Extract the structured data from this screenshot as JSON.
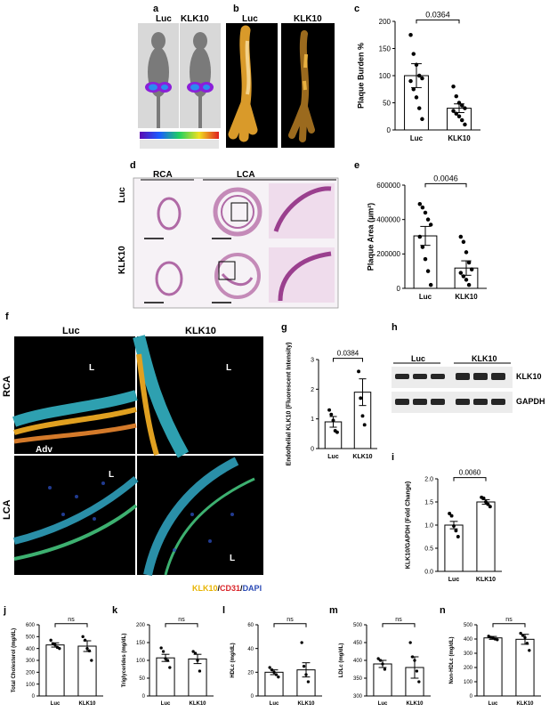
{
  "panel_labels": {
    "a": "a",
    "b": "b",
    "c": "c",
    "d": "d",
    "e": "e",
    "f": "f",
    "g": "g",
    "h": "h",
    "i": "i",
    "j": "j",
    "k": "k",
    "l": "l",
    "m": "m",
    "n": "n"
  },
  "panel_a": {
    "luc": "Luc",
    "klk10": "KLK10"
  },
  "panel_b": {
    "luc": "Luc",
    "klk10": "KLK10"
  },
  "panel_d": {
    "rca": "RCA",
    "lca": "LCA",
    "luc": "Luc",
    "klk10": "KLK10"
  },
  "panel_f": {
    "luc": "Luc",
    "klk10": "KLK10",
    "rca": "RCA",
    "lca": "LCA",
    "adv": "Adv",
    "lumen": "L",
    "stain_klk10": "KLK10",
    "stain_sep1": "/",
    "stain_cd31": "CD31",
    "stain_sep2": "/",
    "stain_dapi": "DAPI"
  },
  "panel_h": {
    "luc": "Luc",
    "klk10": "KLK10",
    "row1": "KLK10",
    "row2": "GAPDH"
  },
  "colors": {
    "bar_stroke": "#000000",
    "klk10_stain": "#e8b400",
    "cd31_stain": "#d9252a",
    "dapi_stain": "#2a4ab5"
  },
  "chart_data": [
    {
      "id": "c",
      "type": "bar",
      "categories": [
        "Luc",
        "KLK10"
      ],
      "values": [
        100,
        40
      ],
      "errors": [
        22,
        8
      ],
      "points": [
        [
          175,
          140,
          120,
          100,
          95,
          90,
          75,
          60,
          40,
          20
        ],
        [
          80,
          62,
          50,
          45,
          40,
          35,
          30,
          25,
          18,
          10
        ]
      ],
      "ylabel": "Plaque Burden %",
      "ylim": [
        0,
        200
      ],
      "yticks": [
        "0",
        "50",
        "100",
        "150",
        "200"
      ],
      "pvalue": "0.0364"
    },
    {
      "id": "e",
      "type": "bar",
      "categories": [
        "Luc",
        "KLK10"
      ],
      "values": [
        305000,
        118000
      ],
      "errors": [
        55000,
        42000
      ],
      "points": [
        [
          490000,
          470000,
          440000,
          400000,
          370000,
          300000,
          240000,
          170000,
          100000,
          20000
        ],
        [
          300000,
          270000,
          210000,
          150000,
          110000,
          90000,
          70000,
          50000,
          20000
        ]
      ],
      "ylabel": "Plaque Area (µm²)",
      "ylim": [
        0,
        600000
      ],
      "yticks": [
        "0",
        "200000",
        "400000",
        "600000"
      ],
      "pvalue": "0.0046"
    },
    {
      "id": "g",
      "type": "bar",
      "categories": [
        "Luc",
        "KLK10"
      ],
      "values": [
        0.9,
        1.9
      ],
      "errors": [
        0.18,
        0.45
      ],
      "points": [
        [
          1.3,
          1.15,
          0.95,
          0.6,
          0.55
        ],
        [
          2.6,
          1.7,
          1.1,
          0.8
        ]
      ],
      "ylabel": "Endothelial KLK10 (Fluorescent Intensity)",
      "ylim": [
        0,
        3
      ],
      "yticks": [
        "0",
        "1",
        "2",
        "3"
      ],
      "pvalue": "0.0384"
    },
    {
      "id": "i",
      "type": "bar",
      "categories": [
        "Luc",
        "KLK10"
      ],
      "values": [
        1.0,
        1.5
      ],
      "errors": [
        0.08,
        0.05
      ],
      "points": [
        [
          1.25,
          1.2,
          0.98,
          0.88,
          0.75
        ],
        [
          1.6,
          1.58,
          1.5,
          1.45,
          1.4
        ]
      ],
      "ylabel": "KLK10/GAPDH (Fold Change)",
      "ylim": [
        0,
        2
      ],
      "yticks": [
        "0.0",
        "0.5",
        "1.0",
        "1.5",
        "2.0"
      ],
      "pvalue": "0.0060"
    },
    {
      "id": "j",
      "type": "bar",
      "categories": [
        "Luc",
        "KLK10"
      ],
      "values": [
        430,
        420
      ],
      "errors": [
        18,
        45
      ],
      "points": [
        [
          470,
          440,
          430,
          410,
          400
        ],
        [
          500,
          470,
          400,
          380,
          300
        ]
      ],
      "ylabel": "Total Cholesterol (mg/dL)",
      "ylim": [
        0,
        600
      ],
      "yticks": [
        "0",
        "100",
        "200",
        "300",
        "400",
        "500",
        "600"
      ],
      "pvalue": "ns"
    },
    {
      "id": "k",
      "type": "bar",
      "categories": [
        "Luc",
        "KLK10"
      ],
      "values": [
        107,
        104
      ],
      "errors": [
        10,
        13
      ],
      "points": [
        [
          135,
          125,
          105,
          100,
          80
        ],
        [
          125,
          120,
          100,
          70
        ]
      ],
      "ylabel": "Triglycerides (mg/dL)",
      "ylim": [
        0,
        200
      ],
      "yticks": [
        "0",
        "50",
        "100",
        "150",
        "200"
      ],
      "pvalue": "ns"
    },
    {
      "id": "l",
      "type": "bar",
      "categories": [
        "Luc",
        "KLK10"
      ],
      "values": [
        20,
        22
      ],
      "errors": [
        2,
        6
      ],
      "points": [
        [
          24,
          22,
          20,
          18,
          16
        ],
        [
          45,
          25,
          18,
          12
        ]
      ],
      "ylabel": "HDLc (mg/dL)",
      "ylim": [
        0,
        60
      ],
      "yticks": [
        "0",
        "20",
        "40",
        "60"
      ],
      "pvalue": "ns"
    },
    {
      "id": "m",
      "type": "bar",
      "categories": [
        "Luc",
        "KLK10"
      ],
      "values": [
        390,
        380
      ],
      "errors": [
        10,
        30
      ],
      "points": [
        [
          405,
          400,
          390,
          375
        ],
        [
          450,
          410,
          400,
          370,
          340
        ]
      ],
      "ylabel": "LDLc (mg/dL)",
      "ylim": [
        300,
        500
      ],
      "yticks": [
        "300",
        "350",
        "400",
        "450",
        "500"
      ],
      "pvalue": "ns"
    },
    {
      "id": "n",
      "type": "bar",
      "categories": [
        "Luc",
        "KLK10"
      ],
      "values": [
        408,
        398
      ],
      "errors": [
        10,
        35
      ],
      "points": [
        [
          420,
          412,
          408,
          400,
          395
        ],
        [
          440,
          425,
          410,
          370,
          320
        ]
      ],
      "ylabel": "Non-HDLc (mg/dL)",
      "ylim": [
        0,
        500
      ],
      "yticks": [
        "0",
        "100",
        "200",
        "300",
        "400",
        "500"
      ],
      "pvalue": "ns"
    }
  ]
}
